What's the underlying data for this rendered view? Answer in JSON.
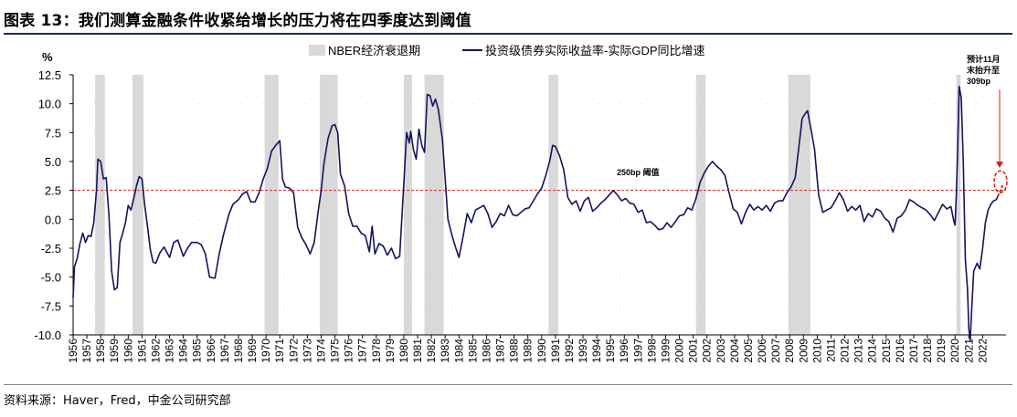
{
  "title": "图表 13：我们测算金融条件收紧给增长的压力将在四季度达到阈值",
  "source": "资料来源：Haver，Fred，中金公司研究部",
  "colors": {
    "series": "#14145e",
    "recession": "#d9d9d9",
    "threshold": "#d62020",
    "title_rule": "#1a2a5e"
  },
  "chart_data": {
    "type": "line",
    "ylabel": "%",
    "ylim": [
      -10,
      12.5
    ],
    "yticks": [
      "12.5",
      "10.0",
      "7.5",
      "5.0",
      "2.5",
      "0.0",
      "-2.5",
      "-5.0",
      "-7.5",
      "-10.0"
    ],
    "yvalues": [
      12.5,
      10,
      7.5,
      5,
      2.5,
      0,
      -2.5,
      -5,
      -7.5,
      -10
    ],
    "xlim": [
      1956.0,
      2023.7
    ],
    "xticks": [
      "1956",
      "1957",
      "1958",
      "1959",
      "1960",
      "1961",
      "1962",
      "1963",
      "1964",
      "1965",
      "1966",
      "1967",
      "1968",
      "1969",
      "1970",
      "1971",
      "1972",
      "1973",
      "1974",
      "1975",
      "1976",
      "1977",
      "1978",
      "1979",
      "1980",
      "1981",
      "1982",
      "1983",
      "1984",
      "1985",
      "1986",
      "1987",
      "1988",
      "1989",
      "1990",
      "1991",
      "1992",
      "1993",
      "1994",
      "1995",
      "1996",
      "1997",
      "1998",
      "1999",
      "2000",
      "2001",
      "2002",
      "2003",
      "2004",
      "2005",
      "2006",
      "2007",
      "2008",
      "2009",
      "2010",
      "2011",
      "2012",
      "2013",
      "2014",
      "2015",
      "2016",
      "2017",
      "2018",
      "2019",
      "2020",
      "2021",
      "2022"
    ],
    "legend": [
      "NBER经济衰退期",
      "投资级债券实际收益率-实际GDP同比增速"
    ],
    "recessions": [
      [
        1957.6,
        1958.3
      ],
      [
        1960.3,
        1961.1
      ],
      [
        1969.9,
        1970.9
      ],
      [
        1973.9,
        1975.2
      ],
      [
        1980.0,
        1980.6
      ],
      [
        1981.5,
        1982.9
      ],
      [
        1990.5,
        1991.2
      ],
      [
        2001.2,
        2001.9
      ],
      [
        2007.9,
        2009.5
      ],
      [
        2020.1,
        2020.4
      ]
    ],
    "threshold": {
      "value": 2.5,
      "label": "250bp 阈值"
    },
    "annotation": {
      "lines": [
        "预计11月",
        "末抬升至",
        "309bp"
      ]
    },
    "series": [
      {
        "name": "投资级债券实际收益率-实际GDP同比增速",
        "points": [
          [
            1956.0,
            -6.8
          ],
          [
            1956.1,
            -4.1
          ],
          [
            1956.3,
            -3.4
          ],
          [
            1956.5,
            -2.1
          ],
          [
            1956.7,
            -1.2
          ],
          [
            1956.9,
            -2.0
          ],
          [
            1957.1,
            -1.4
          ],
          [
            1957.3,
            -1.5
          ],
          [
            1957.5,
            -0.3
          ],
          [
            1957.7,
            2.5
          ],
          [
            1957.8,
            5.2
          ],
          [
            1958.0,
            5.0
          ],
          [
            1958.2,
            3.5
          ],
          [
            1958.4,
            3.6
          ],
          [
            1958.6,
            0.4
          ],
          [
            1958.8,
            -4.5
          ],
          [
            1959.0,
            -6.1
          ],
          [
            1959.2,
            -5.9
          ],
          [
            1959.4,
            -2.0
          ],
          [
            1959.6,
            -1.2
          ],
          [
            1959.8,
            -0.3
          ],
          [
            1960.0,
            1.2
          ],
          [
            1960.2,
            0.8
          ],
          [
            1960.4,
            1.8
          ],
          [
            1960.6,
            2.9
          ],
          [
            1960.8,
            3.7
          ],
          [
            1961.0,
            3.5
          ],
          [
            1961.2,
            1.2
          ],
          [
            1961.4,
            -0.6
          ],
          [
            1961.6,
            -2.6
          ],
          [
            1961.8,
            -3.7
          ],
          [
            1962.0,
            -3.8
          ],
          [
            1962.3,
            -2.9
          ],
          [
            1962.6,
            -2.4
          ],
          [
            1963.0,
            -3.3
          ],
          [
            1963.3,
            -2.0
          ],
          [
            1963.6,
            -1.8
          ],
          [
            1964.0,
            -3.2
          ],
          [
            1964.3,
            -2.5
          ],
          [
            1964.6,
            -2.0
          ],
          [
            1965.0,
            -2.0
          ],
          [
            1965.3,
            -2.2
          ],
          [
            1965.6,
            -3.0
          ],
          [
            1965.9,
            -5.0
          ],
          [
            1966.3,
            -5.1
          ],
          [
            1966.6,
            -3.0
          ],
          [
            1966.9,
            -1.4
          ],
          [
            1967.3,
            0.4
          ],
          [
            1967.6,
            1.3
          ],
          [
            1968.0,
            1.7
          ],
          [
            1968.3,
            2.2
          ],
          [
            1968.6,
            2.4
          ],
          [
            1968.9,
            1.5
          ],
          [
            1969.2,
            1.5
          ],
          [
            1969.5,
            2.3
          ],
          [
            1969.8,
            3.5
          ],
          [
            1970.1,
            4.4
          ],
          [
            1970.4,
            5.9
          ],
          [
            1970.7,
            6.4
          ],
          [
            1971.0,
            6.8
          ],
          [
            1971.2,
            3.5
          ],
          [
            1971.4,
            2.8
          ],
          [
            1971.7,
            2.7
          ],
          [
            1972.0,
            2.3
          ],
          [
            1972.3,
            -0.7
          ],
          [
            1972.6,
            -1.6
          ],
          [
            1972.9,
            -2.2
          ],
          [
            1973.2,
            -3.0
          ],
          [
            1973.5,
            -2.0
          ],
          [
            1973.8,
            0.8
          ],
          [
            1974.0,
            2.5
          ],
          [
            1974.2,
            4.8
          ],
          [
            1974.5,
            7.0
          ],
          [
            1974.8,
            8.1
          ],
          [
            1975.0,
            8.2
          ],
          [
            1975.2,
            7.5
          ],
          [
            1975.4,
            3.9
          ],
          [
            1975.7,
            2.9
          ],
          [
            1976.0,
            0.5
          ],
          [
            1976.3,
            -0.6
          ],
          [
            1976.6,
            -0.6
          ],
          [
            1976.9,
            -1.2
          ],
          [
            1977.2,
            -1.4
          ],
          [
            1977.5,
            -2.8
          ],
          [
            1977.7,
            -0.6
          ],
          [
            1977.9,
            -3.0
          ],
          [
            1978.2,
            -2.1
          ],
          [
            1978.5,
            -2.3
          ],
          [
            1978.8,
            -3.1
          ],
          [
            1979.1,
            -2.5
          ],
          [
            1979.4,
            -3.4
          ],
          [
            1979.7,
            -3.2
          ],
          [
            1980.0,
            3.0
          ],
          [
            1980.2,
            7.5
          ],
          [
            1980.4,
            6.6
          ],
          [
            1980.5,
            7.6
          ],
          [
            1980.7,
            6.0
          ],
          [
            1980.9,
            5.2
          ],
          [
            1981.1,
            7.8
          ],
          [
            1981.3,
            6.4
          ],
          [
            1981.5,
            5.8
          ],
          [
            1981.7,
            10.8
          ],
          [
            1981.9,
            10.7
          ],
          [
            1982.1,
            9.8
          ],
          [
            1982.3,
            10.4
          ],
          [
            1982.5,
            9.5
          ],
          [
            1982.8,
            6.9
          ],
          [
            1983.0,
            3.5
          ],
          [
            1983.2,
            0.0
          ],
          [
            1983.5,
            -1.4
          ],
          [
            1983.8,
            -2.6
          ],
          [
            1984.0,
            -3.3
          ],
          [
            1984.3,
            -1.5
          ],
          [
            1984.6,
            0.5
          ],
          [
            1984.9,
            -0.3
          ],
          [
            1985.2,
            0.8
          ],
          [
            1985.5,
            1.0
          ],
          [
            1985.8,
            1.2
          ],
          [
            1986.1,
            0.5
          ],
          [
            1986.4,
            -0.7
          ],
          [
            1986.7,
            -0.2
          ],
          [
            1987.0,
            0.5
          ],
          [
            1987.3,
            0.3
          ],
          [
            1987.6,
            1.2
          ],
          [
            1987.9,
            0.4
          ],
          [
            1988.2,
            0.3
          ],
          [
            1988.5,
            0.6
          ],
          [
            1988.8,
            0.9
          ],
          [
            1989.1,
            1.0
          ],
          [
            1989.4,
            1.6
          ],
          [
            1989.7,
            2.2
          ],
          [
            1990.0,
            2.7
          ],
          [
            1990.3,
            3.8
          ],
          [
            1990.6,
            5.1
          ],
          [
            1990.8,
            6.4
          ],
          [
            1991.0,
            6.3
          ],
          [
            1991.3,
            5.5
          ],
          [
            1991.6,
            4.3
          ],
          [
            1991.9,
            1.9
          ],
          [
            1992.2,
            1.3
          ],
          [
            1992.5,
            1.6
          ],
          [
            1992.8,
            0.7
          ],
          [
            1993.1,
            1.6
          ],
          [
            1993.4,
            1.9
          ],
          [
            1993.7,
            0.7
          ],
          [
            1994.0,
            1.0
          ],
          [
            1994.3,
            1.4
          ],
          [
            1994.6,
            1.7
          ],
          [
            1994.9,
            2.1
          ],
          [
            1995.2,
            2.5
          ],
          [
            1995.5,
            2.1
          ],
          [
            1995.8,
            1.6
          ],
          [
            1996.1,
            1.8
          ],
          [
            1996.4,
            1.4
          ],
          [
            1996.7,
            1.3
          ],
          [
            1997.0,
            0.6
          ],
          [
            1997.3,
            0.8
          ],
          [
            1997.6,
            -0.3
          ],
          [
            1997.9,
            -0.2
          ],
          [
            1998.2,
            -0.5
          ],
          [
            1998.5,
            -0.9
          ],
          [
            1998.8,
            -0.8
          ],
          [
            1999.1,
            -0.3
          ],
          [
            1999.4,
            -0.7
          ],
          [
            1999.7,
            -0.2
          ],
          [
            2000.0,
            0.3
          ],
          [
            2000.3,
            0.4
          ],
          [
            2000.6,
            1.0
          ],
          [
            2000.9,
            0.8
          ],
          [
            2001.2,
            1.8
          ],
          [
            2001.5,
            3.2
          ],
          [
            2001.8,
            4.0
          ],
          [
            2002.1,
            4.6
          ],
          [
            2002.4,
            5.0
          ],
          [
            2002.7,
            4.6
          ],
          [
            2003.0,
            4.3
          ],
          [
            2003.3,
            3.8
          ],
          [
            2003.6,
            2.3
          ],
          [
            2003.9,
            0.9
          ],
          [
            2004.2,
            0.6
          ],
          [
            2004.5,
            -0.4
          ],
          [
            2004.8,
            0.6
          ],
          [
            2005.1,
            1.3
          ],
          [
            2005.4,
            0.8
          ],
          [
            2005.7,
            1.1
          ],
          [
            2006.0,
            0.8
          ],
          [
            2006.3,
            1.2
          ],
          [
            2006.6,
            0.7
          ],
          [
            2006.9,
            1.4
          ],
          [
            2007.2,
            1.6
          ],
          [
            2007.5,
            1.6
          ],
          [
            2007.8,
            2.3
          ],
          [
            2008.1,
            2.8
          ],
          [
            2008.4,
            3.6
          ],
          [
            2008.7,
            6.6
          ],
          [
            2008.9,
            8.7
          ],
          [
            2009.1,
            9.1
          ],
          [
            2009.3,
            9.4
          ],
          [
            2009.5,
            8.1
          ],
          [
            2009.8,
            6.1
          ],
          [
            2010.1,
            2.1
          ],
          [
            2010.4,
            0.6
          ],
          [
            2010.7,
            0.8
          ],
          [
            2011.0,
            1.0
          ],
          [
            2011.3,
            1.6
          ],
          [
            2011.6,
            2.3
          ],
          [
            2011.9,
            1.7
          ],
          [
            2012.2,
            0.7
          ],
          [
            2012.5,
            1.1
          ],
          [
            2012.8,
            0.8
          ],
          [
            2013.1,
            1.2
          ],
          [
            2013.4,
            -0.2
          ],
          [
            2013.7,
            0.5
          ],
          [
            2014.0,
            0.2
          ],
          [
            2014.3,
            0.9
          ],
          [
            2014.6,
            0.7
          ],
          [
            2014.9,
            0.1
          ],
          [
            2015.2,
            -0.2
          ],
          [
            2015.5,
            -1.1
          ],
          [
            2015.8,
            0.1
          ],
          [
            2016.1,
            0.3
          ],
          [
            2016.4,
            0.8
          ],
          [
            2016.7,
            1.7
          ],
          [
            2017.0,
            1.5
          ],
          [
            2017.3,
            1.2
          ],
          [
            2017.6,
            1.0
          ],
          [
            2017.9,
            0.8
          ],
          [
            2018.2,
            0.4
          ],
          [
            2018.5,
            -0.1
          ],
          [
            2018.8,
            0.6
          ],
          [
            2019.1,
            1.3
          ],
          [
            2019.4,
            0.9
          ],
          [
            2019.7,
            1.1
          ],
          [
            2019.9,
            -0.1
          ],
          [
            2020.0,
            -0.5
          ],
          [
            2020.1,
            2.3
          ],
          [
            2020.2,
            6.5
          ],
          [
            2020.3,
            11.5
          ],
          [
            2020.45,
            10.5
          ],
          [
            2020.6,
            5.0
          ],
          [
            2020.75,
            -3.5
          ],
          [
            2020.9,
            -6.0
          ],
          [
            2021.0,
            -9.5
          ],
          [
            2021.1,
            -10.5
          ],
          [
            2021.2,
            -8.0
          ],
          [
            2021.35,
            -4.5
          ],
          [
            2021.6,
            -3.8
          ],
          [
            2021.8,
            -4.3
          ],
          [
            2022.0,
            -2.5
          ],
          [
            2022.2,
            -0.3
          ],
          [
            2022.4,
            0.8
          ],
          [
            2022.6,
            1.3
          ],
          [
            2022.8,
            1.6
          ],
          [
            2023.0,
            1.7
          ],
          [
            2023.1,
            2.0
          ]
        ]
      }
    ],
    "forecast": {
      "points": [
        [
          2023.1,
          2.0
        ],
        [
          2023.3,
          2.5
        ],
        [
          2023.5,
          3.1
        ]
      ]
    }
  }
}
